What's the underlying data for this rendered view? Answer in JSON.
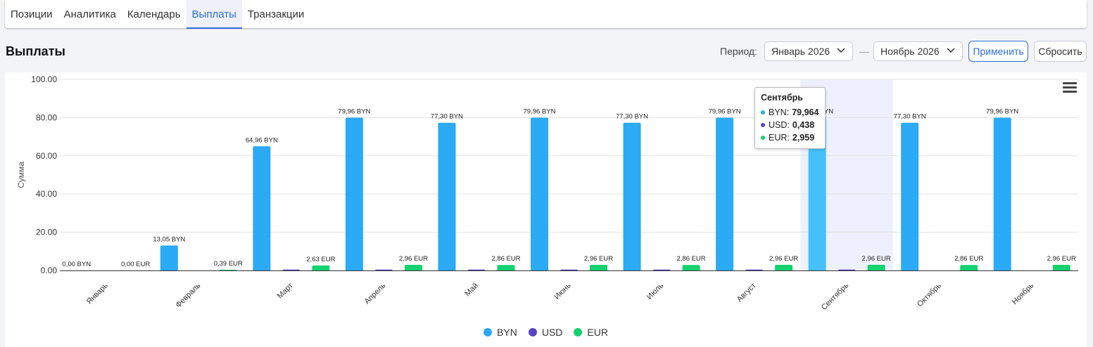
{
  "tabs": [
    {
      "label": "Позиции"
    },
    {
      "label": "Аналитика"
    },
    {
      "label": "Календарь"
    },
    {
      "label": "Выплаты",
      "active": true
    },
    {
      "label": "Транзакции"
    }
  ],
  "page_title": "Выплаты",
  "filters": {
    "period_label": "Период:",
    "from": "Январь 2026",
    "separator": "—",
    "to": "Ноябрь 2026",
    "apply_label": "Применить",
    "reset_label": "Сбросить"
  },
  "colors": {
    "accent": "#2f6fdb",
    "byn": "#2baaf5",
    "usd": "#5445c2",
    "eur": "#14d26e",
    "highlight_band": "#eef1fd",
    "byn_highlight": "#45c0fa"
  },
  "menu": {
    "icon": "hamburger-menu-icon"
  },
  "tooltip": {
    "title": "Сентябрь",
    "rows": [
      {
        "label": "BYN:",
        "value": "79,964"
      },
      {
        "label": "USD:",
        "value": "0,438"
      },
      {
        "label": "EUR:",
        "value": "2,959"
      }
    ]
  },
  "chart_data": {
    "type": "bar",
    "ylabel": "Сумма",
    "ylim": [
      0,
      100
    ],
    "yticks": [
      "0.00",
      "20.00",
      "40.00",
      "60.00",
      "80.00",
      "100.00"
    ],
    "grid": true,
    "legend_position": "bottom",
    "highlighted_category": "Сентябрь",
    "categories": [
      "Январь",
      "Февраль",
      "Март",
      "Апрель",
      "Май",
      "Июнь",
      "Июль",
      "Август",
      "Сентябрь",
      "Октябрь",
      "Ноябрь"
    ],
    "series": [
      {
        "name": "BYN",
        "values": [
          0,
          13.05,
          64.96,
          79.96,
          77.3,
          79.96,
          77.3,
          79.96,
          79.964,
          77.3,
          79.96
        ],
        "labels": [
          "0,00 BYN",
          "13,05 BYN",
          "64,96 BYN",
          "79,96 BYN",
          "77,30 BYN",
          "79,96 BYN",
          "77,30 BYN",
          "79,96 BYN",
          "79,96 BYN",
          "77,30 BYN",
          "79,96 BYN"
        ]
      },
      {
        "name": "USD",
        "values": [
          0,
          0,
          0.44,
          0.44,
          0.44,
          0.44,
          0.44,
          0.44,
          0.438,
          0,
          0
        ],
        "labels": []
      },
      {
        "name": "EUR",
        "values": [
          0,
          0.39,
          2.63,
          2.96,
          2.86,
          2.96,
          2.86,
          2.96,
          2.959,
          2.86,
          2.96
        ],
        "labels": [
          "0,00 EUR",
          "0,39 EUR",
          "2,63 EUR",
          "2,96 EUR",
          "2,86 EUR",
          "2,96 EUR",
          "2,86 EUR",
          "2,96 EUR",
          "2,96 EUR",
          "2,86 EUR",
          "2,96 EUR"
        ]
      }
    ]
  }
}
